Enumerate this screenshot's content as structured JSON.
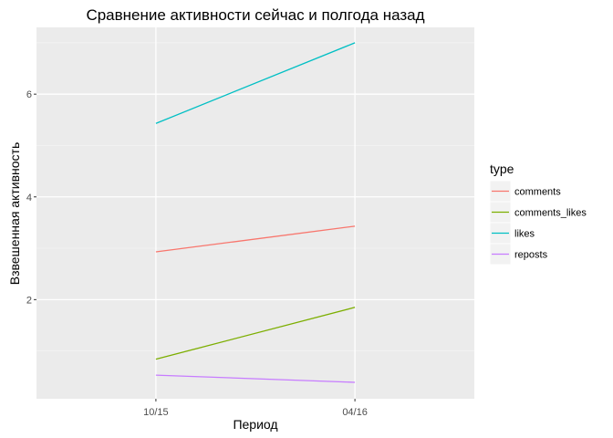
{
  "chart_data": {
    "type": "line",
    "title": "Сравнение активности сейчас и полгода назад",
    "xlabel": "Период",
    "ylabel": "Взвешенная активность",
    "categories": [
      "10/15",
      "04/16"
    ],
    "y_ticks": [
      2,
      4,
      6
    ],
    "ylim": [
      0.07,
      7.3
    ],
    "grid": true,
    "legend_placement": "right",
    "legend_title": "type",
    "series": [
      {
        "name": "comments",
        "color": "#F8766D",
        "values": [
          2.93,
          3.43
        ]
      },
      {
        "name": "comments_likes",
        "color": "#7CAE00",
        "values": [
          0.84,
          1.85
        ]
      },
      {
        "name": "likes",
        "color": "#00BFC4",
        "values": [
          5.43,
          7.0
        ]
      },
      {
        "name": "reposts",
        "color": "#C77CFF",
        "values": [
          0.53,
          0.39
        ]
      }
    ]
  }
}
